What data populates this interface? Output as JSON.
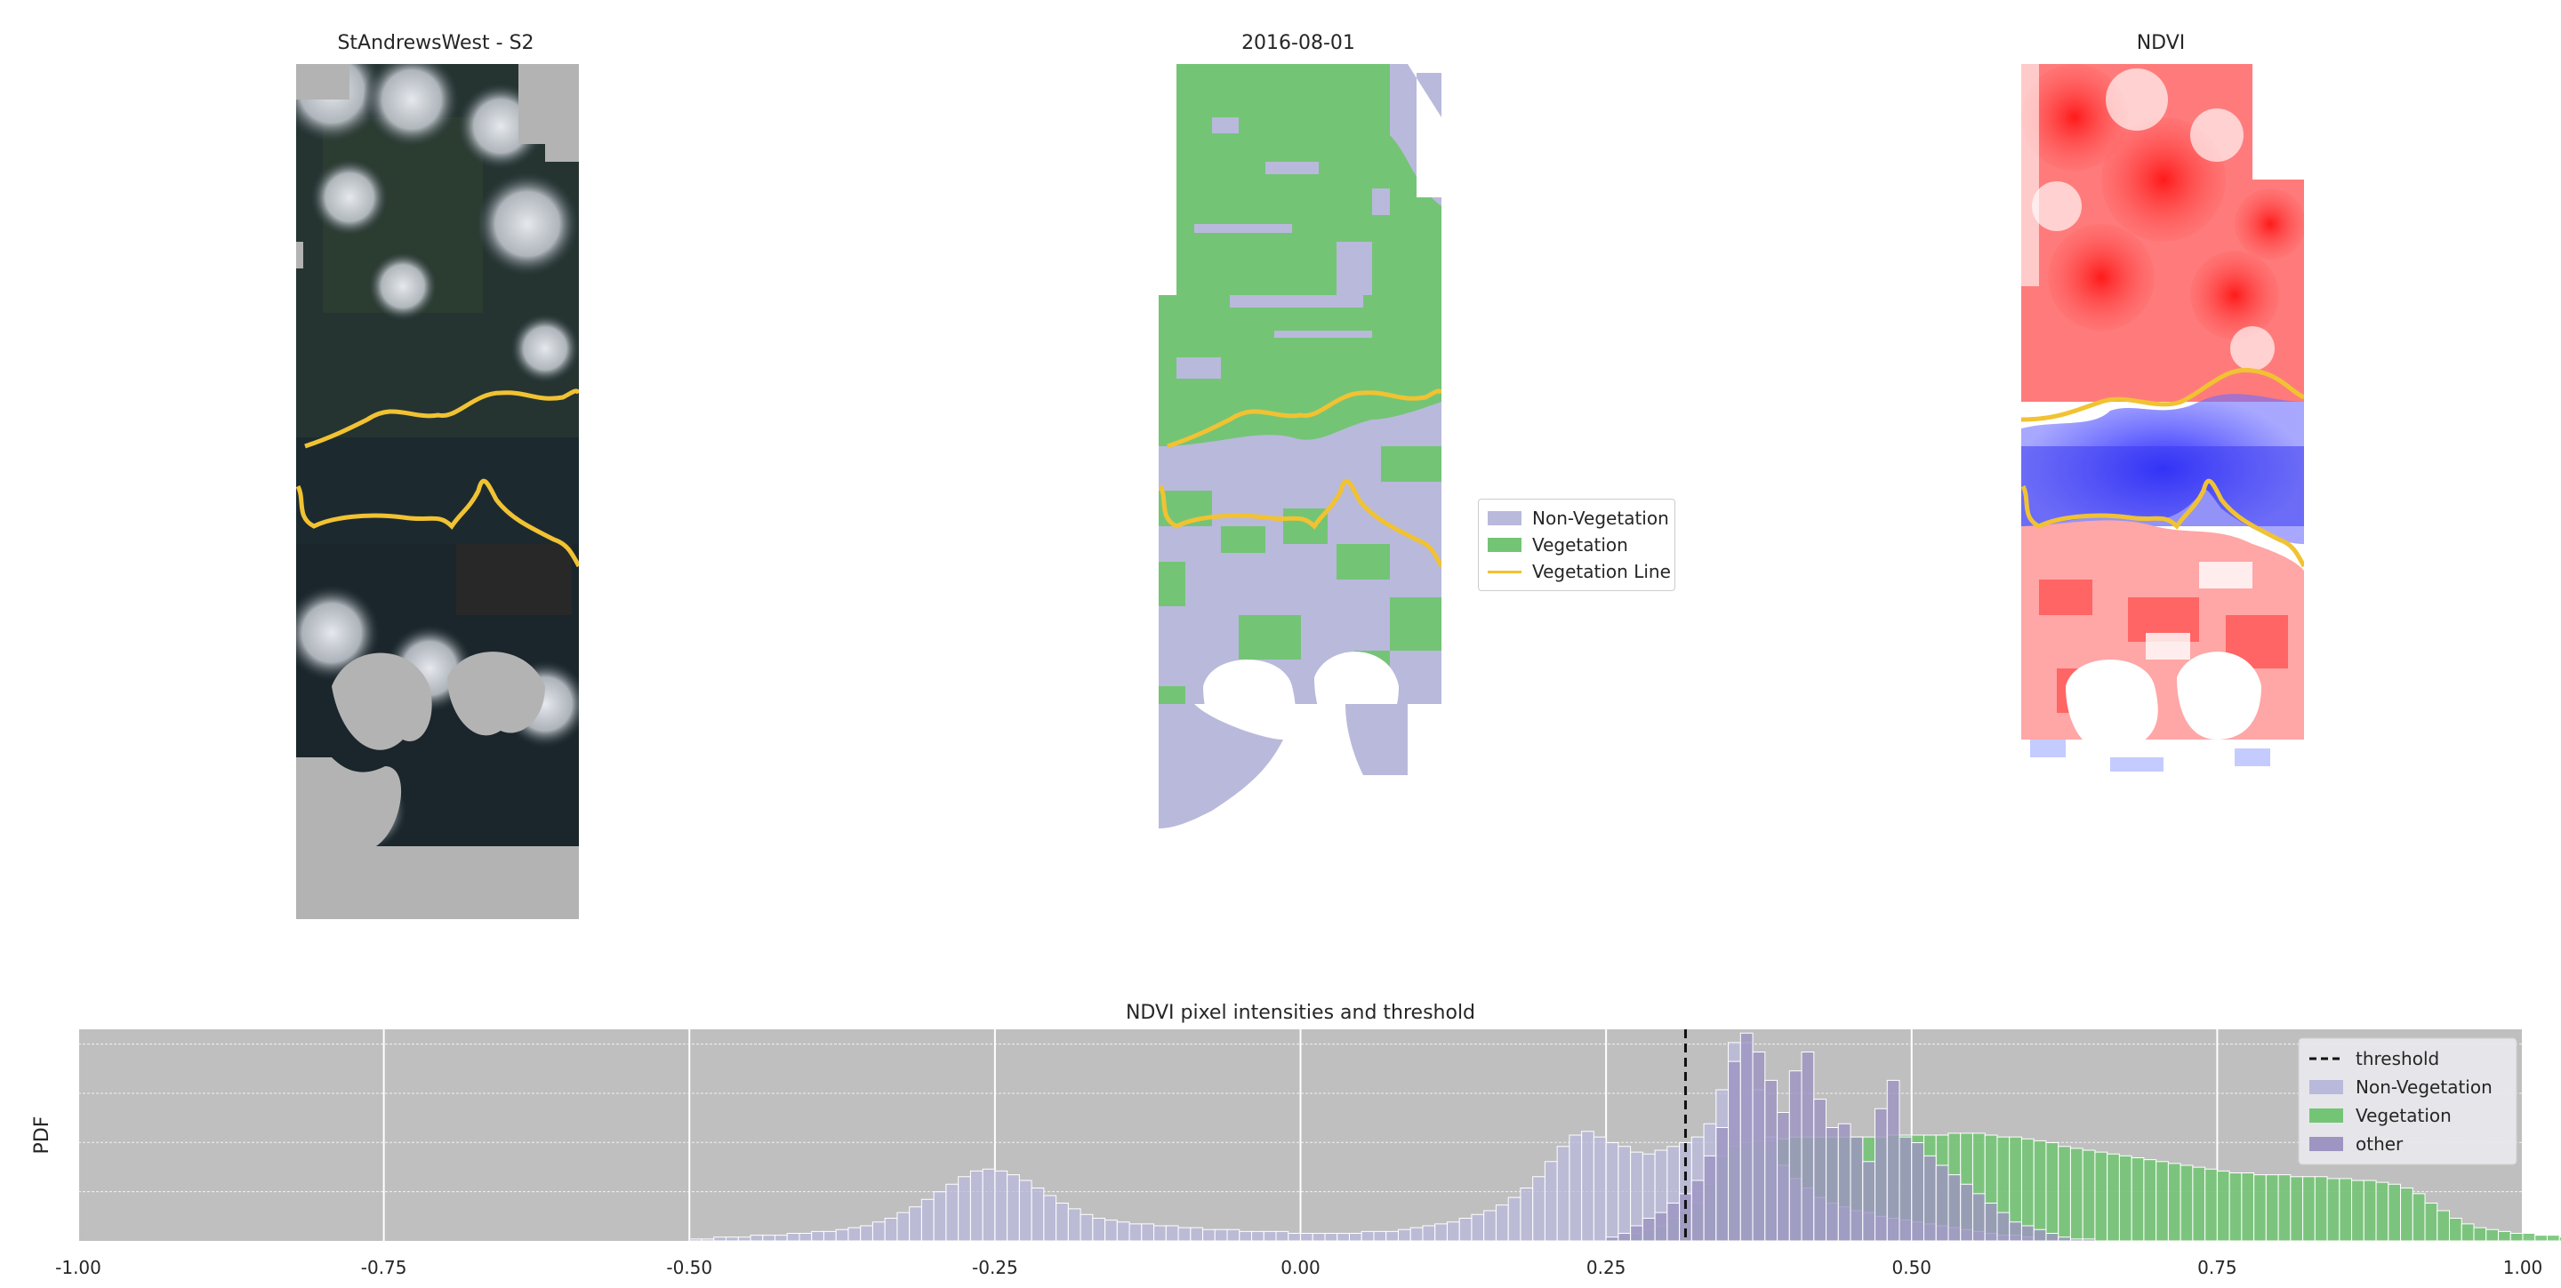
{
  "panels": {
    "rgb_title": "StAndrewsWest - S2",
    "class_title": "2016-08-01",
    "ndvi_title": "NDVI"
  },
  "map_legend": {
    "non_veg": "Non-Vegetation",
    "veg": "Vegetation",
    "veg_line": "Vegetation Line"
  },
  "colors": {
    "non_veg": "#b9b9dc",
    "veg": "#74c476",
    "other": "#9e95c2",
    "veg_line": "#f1c232",
    "cloud_gray": "#b3b3b3",
    "plot_bg": "#bfbfbf"
  },
  "chart_data": {
    "type": "histogram",
    "title": "NDVI pixel intensities and threshold",
    "xlabel": "",
    "ylabel": "PDF",
    "xlim": [
      -1.0,
      1.0
    ],
    "xticks": [
      "-1.00",
      "-0.75",
      "-0.50",
      "-0.25",
      "0.00",
      "0.25",
      "0.50",
      "0.75",
      "1.00"
    ],
    "threshold": 0.315,
    "legend": [
      "threshold",
      "Non-Vegetation",
      "Vegetation",
      "other"
    ],
    "series": [
      {
        "name": "Non-Vegetation",
        "bins_start": -0.5,
        "bin_width": 0.01,
        "values": [
          0.01,
          0.01,
          0.02,
          0.02,
          0.02,
          0.03,
          0.03,
          0.03,
          0.04,
          0.04,
          0.05,
          0.05,
          0.06,
          0.07,
          0.08,
          0.1,
          0.12,
          0.15,
          0.18,
          0.22,
          0.26,
          0.3,
          0.34,
          0.37,
          0.38,
          0.37,
          0.35,
          0.32,
          0.28,
          0.24,
          0.2,
          0.17,
          0.14,
          0.12,
          0.11,
          0.1,
          0.09,
          0.09,
          0.08,
          0.08,
          0.07,
          0.07,
          0.06,
          0.06,
          0.06,
          0.05,
          0.05,
          0.05,
          0.05,
          0.04,
          0.04,
          0.04,
          0.04,
          0.04,
          0.04,
          0.05,
          0.05,
          0.05,
          0.06,
          0.07,
          0.08,
          0.09,
          0.1,
          0.12,
          0.14,
          0.16,
          0.19,
          0.23,
          0.28,
          0.34,
          0.42,
          0.5,
          0.56,
          0.58,
          0.55,
          0.52,
          0.5,
          0.47,
          0.46,
          0.48,
          0.5,
          0.52,
          0.55,
          0.62,
          0.8,
          1.05,
          1.05,
          0.8,
          0.55,
          0.4,
          0.33,
          0.28,
          0.23,
          0.2,
          0.18,
          0.16,
          0.15,
          0.13,
          0.12,
          0.11,
          0.1,
          0.09,
          0.08,
          0.07,
          0.06,
          0.05,
          0.04,
          0.03,
          0.03,
          0.02
        ]
      },
      {
        "name": "Vegetation",
        "bins_start": 0.25,
        "bin_width": 0.01,
        "values": [
          0.02,
          0.03,
          0.04,
          0.06,
          0.08,
          0.12,
          0.16,
          0.2,
          0.3,
          0.45,
          0.5,
          0.52,
          0.53,
          0.53,
          0.54,
          0.55,
          0.55,
          0.55,
          0.55,
          0.55,
          0.55,
          0.55,
          0.55,
          0.56,
          0.56,
          0.56,
          0.56,
          0.56,
          0.57,
          0.57,
          0.57,
          0.56,
          0.55,
          0.55,
          0.54,
          0.53,
          0.52,
          0.5,
          0.49,
          0.48,
          0.47,
          0.46,
          0.45,
          0.44,
          0.43,
          0.42,
          0.41,
          0.4,
          0.39,
          0.38,
          0.37,
          0.36,
          0.36,
          0.35,
          0.35,
          0.35,
          0.34,
          0.34,
          0.34,
          0.33,
          0.33,
          0.32,
          0.32,
          0.31,
          0.3,
          0.28,
          0.25,
          0.2,
          0.16,
          0.12,
          0.09,
          0.07,
          0.06,
          0.05,
          0.04,
          0.04,
          0.03,
          0.03,
          0.02,
          0.02,
          0.01,
          0.01
        ]
      },
      {
        "name": "other",
        "bins_start": 0.25,
        "bin_width": 0.01,
        "values": [
          0.02,
          0.04,
          0.08,
          0.12,
          0.15,
          0.2,
          0.25,
          0.32,
          0.45,
          0.6,
          0.95,
          1.1,
          1.0,
          0.85,
          0.68,
          0.9,
          1.0,
          0.75,
          0.6,
          0.62,
          0.55,
          0.42,
          0.7,
          0.85,
          0.55,
          0.52,
          0.45,
          0.4,
          0.35,
          0.3,
          0.25,
          0.2,
          0.15,
          0.1,
          0.08,
          0.06,
          0.04,
          0.02,
          0.01,
          0.01
        ]
      }
    ]
  }
}
